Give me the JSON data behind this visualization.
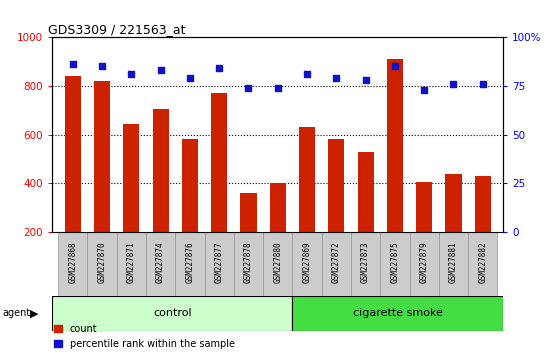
{
  "title": "GDS3309 / 221563_at",
  "samples": [
    "GSM227868",
    "GSM227870",
    "GSM227871",
    "GSM227874",
    "GSM227876",
    "GSM227877",
    "GSM227878",
    "GSM227880",
    "GSM227869",
    "GSM227872",
    "GSM227873",
    "GSM227875",
    "GSM227879",
    "GSM227881",
    "GSM227882"
  ],
  "counts": [
    840,
    820,
    645,
    705,
    580,
    770,
    358,
    400,
    632,
    580,
    530,
    910,
    405,
    437,
    428
  ],
  "percentiles": [
    86,
    85,
    81,
    83,
    79,
    84,
    74,
    74,
    81,
    79,
    78,
    85,
    73,
    76,
    76
  ],
  "control_count": 8,
  "cigarette_smoke_count": 7,
  "bar_color": "#cc2200",
  "dot_color": "#1111cc",
  "control_color": "#ccffcc",
  "smoke_color": "#44dd44",
  "ylim_left": [
    200,
    1000
  ],
  "ylim_right": [
    0,
    100
  ],
  "yticks_left": [
    200,
    400,
    600,
    800,
    1000
  ],
  "yticks_right": [
    0,
    25,
    50,
    75,
    100
  ],
  "grid_values": [
    400,
    600,
    800
  ],
  "bar_bottom": 200
}
